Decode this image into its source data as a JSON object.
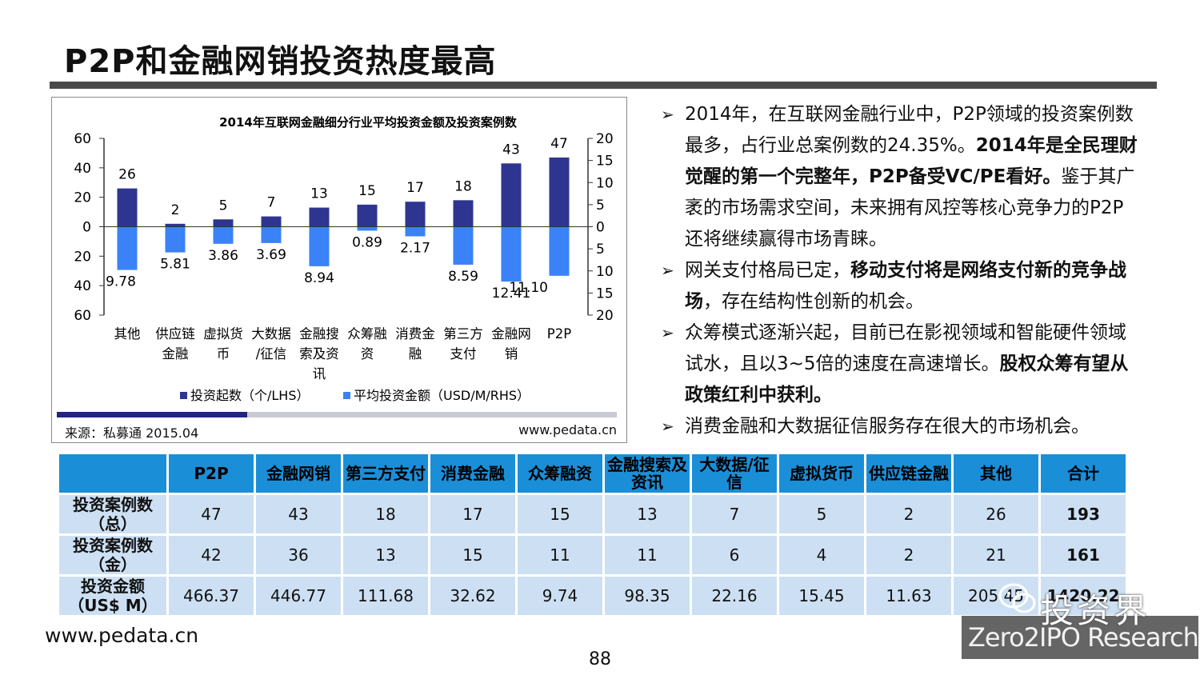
{
  "slide": {
    "title": "P2P和金融网销投资热度最高",
    "footer_url": "www.pedata.cn",
    "page_number": "88"
  },
  "chart_meta": {
    "source": "来源：私募通 2015.04",
    "url": "www.pedata.cn",
    "progress_fraction": 0.34
  },
  "chart_data": {
    "type": "bar",
    "title": "2014年互联网金融细分行业平均投资金额及投资案例数",
    "categories": [
      [
        "其他"
      ],
      [
        "供应链",
        "金融"
      ],
      [
        "虚拟货",
        "币"
      ],
      [
        "大数据",
        "/征信"
      ],
      [
        "金融搜",
        "索及资",
        "讯"
      ],
      [
        "众筹融",
        "资"
      ],
      [
        "消费金",
        "融"
      ],
      [
        "第三方",
        "支付"
      ],
      [
        "金融网",
        "销"
      ],
      [
        "P2P"
      ]
    ],
    "series": [
      {
        "name": "投资起数（个/LHS）",
        "axis": "left",
        "color": "#2e3590",
        "values": [
          26,
          2,
          5,
          7,
          13,
          15,
          17,
          18,
          43,
          47
        ]
      },
      {
        "name": "平均投资金额（USD/M/RHS）",
        "axis": "right",
        "color": "#3b82f6",
        "values": [
          9.78,
          5.81,
          3.86,
          3.69,
          8.94,
          0.89,
          2.17,
          8.59,
          12.41,
          11.1
        ],
        "labels": [
          "9.78",
          "5.81",
          "3.86",
          "3.69",
          "8.94",
          "0.89",
          "2.17",
          "8.59",
          "12.41",
          "11.10"
        ]
      }
    ],
    "left_axis": {
      "range": [
        -60,
        60
      ],
      "ticks": [
        "60",
        "40",
        "20",
        "0",
        "20",
        "40",
        "60"
      ]
    },
    "right_axis": {
      "range": [
        -20,
        20
      ],
      "ticks": [
        "20",
        "15",
        "10",
        "5",
        "0",
        "5",
        "10",
        "15",
        "20"
      ]
    },
    "legend_position": "bottom",
    "grid": false
  },
  "bullets": [
    [
      {
        "t": "2014年，在互联网金融行业中，P2P领域的投资案例数最多，占行业总案例数的24.35%。"
      },
      {
        "t": "2014年是全民理财觉醒的第一个完整年，P2P备受VC/PE看好。",
        "b": true
      },
      {
        "t": "鉴于其广袤的市场需求空间，未来拥有风控等核心竞争力的P2P还将继续赢得市场青睐。"
      }
    ],
    [
      {
        "t": "网关支付格局已定，"
      },
      {
        "t": "移动支付将是网络支付新的竞争战场",
        "b": true
      },
      {
        "t": "，存在结构性创新的机会。"
      }
    ],
    [
      {
        "t": "众筹模式逐渐兴起，目前已在影视领域和智能硬件领域试水，且以3~5倍的速度在高速增长。"
      },
      {
        "t": "股权众筹有望从政策红利中获利。",
        "b": true
      }
    ],
    [
      {
        "t": "消费金融和大数据征信服务存在很大的市场机会。"
      }
    ]
  ],
  "table": {
    "headers": [
      "P2P",
      "金融网销",
      "第三方支付",
      "消费金融",
      "众筹融资",
      "金融搜索及资讯",
      "大数据/征信",
      "虚拟货币",
      "供应链金融",
      "其他",
      "合计"
    ],
    "rows": [
      {
        "label": [
          "投资案例数",
          "（总）"
        ],
        "values": [
          "47",
          "43",
          "18",
          "17",
          "15",
          "13",
          "7",
          "5",
          "2",
          "26"
        ],
        "total": "193"
      },
      {
        "label": [
          "投资案例数",
          "（金）"
        ],
        "values": [
          "42",
          "36",
          "13",
          "15",
          "11",
          "11",
          "6",
          "4",
          "2",
          "21"
        ],
        "total": "161"
      },
      {
        "label": [
          "投资金额",
          "（US$ M）"
        ],
        "values": [
          "466.37",
          "446.77",
          "111.68",
          "32.62",
          "9.74",
          "98.35",
          "22.16",
          "15.45",
          "11.63",
          "205.45"
        ],
        "total": "1420.22"
      }
    ]
  },
  "watermark": {
    "cn": "投资界",
    "en": "Zero2IPO Research",
    "logo_icon": "wechat-logo-icon"
  }
}
